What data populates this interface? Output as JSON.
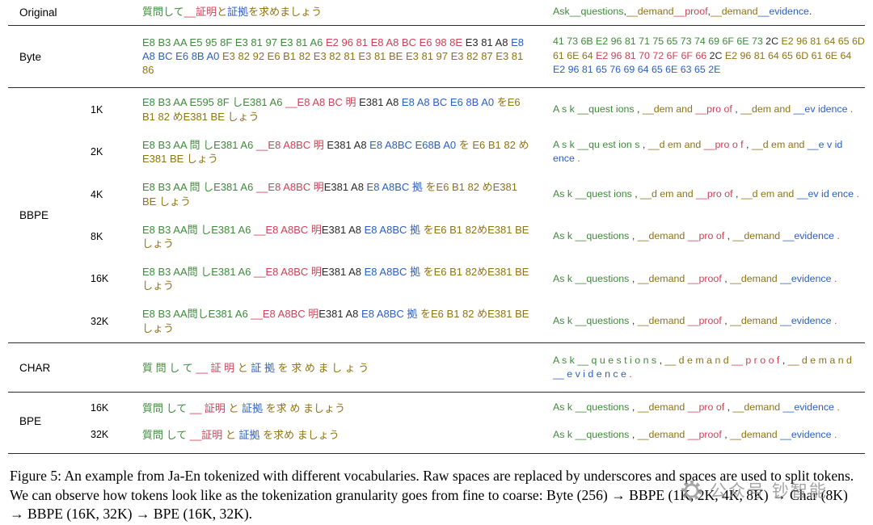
{
  "palette": {
    "green": "#3E8A3A",
    "red": "#CC4257",
    "olive": "#8F7314",
    "blue": "#2C5FC2",
    "black": "#2A2A2A"
  },
  "table": {
    "sections": [
      {
        "group": "Original",
        "rows": [
          {
            "size": "",
            "ja": [
              {
                "t": "質問して",
                "c": "green"
              },
              {
                "t": "__証明",
                "c": "red"
              },
              {
                "t": "と",
                "c": "olive"
              },
              {
                "t": "証拠",
                "c": "blue"
              },
              {
                "t": "を求めましょう",
                "c": "olive"
              }
            ],
            "en": [
              {
                "t": "Ask",
                "c": "green"
              },
              {
                "t": "__questions",
                "c": "green"
              },
              {
                "t": ",",
                "c": "black"
              },
              {
                "t": "__demand",
                "c": "olive"
              },
              {
                "t": "__proof",
                "c": "red"
              },
              {
                "t": ",",
                "c": "black"
              },
              {
                "t": "__demand",
                "c": "olive"
              },
              {
                "t": "__evidence",
                "c": "blue"
              },
              {
                "t": ".",
                "c": "black"
              }
            ]
          }
        ]
      },
      {
        "group": "Byte",
        "rows": [
          {
            "size": "",
            "ja": [
              {
                "t": "E8 B3 AA E5 95 8F E3 81 97 E3 81 A6 ",
                "c": "green"
              },
              {
                "t": "E2 96 81 E8 A8 BC E6 98 8E ",
                "c": "red"
              },
              {
                "t": "E3 81 A8 ",
                "c": "black"
              },
              {
                "t": "E8 A8 BC E6 8B A0 ",
                "c": "blue"
              },
              {
                "t": "E3 82 92 E6 B1 82 E3 82 81 E3 81 BE E3 81 97 E3 82 87 E3 81 86",
                "c": "olive"
              }
            ],
            "en": [
              {
                "t": "41 73 6B E2 96 81 71 75 65 73 74 69 6F 6E 73 ",
                "c": "green"
              },
              {
                "t": "2C ",
                "c": "black"
              },
              {
                "t": "E2 96 81 64 65 6D 61 6E 64 ",
                "c": "olive"
              },
              {
                "t": "E2 96 81 70 72 6F 6F 66 ",
                "c": "red"
              },
              {
                "t": "2C ",
                "c": "black"
              },
              {
                "t": "E2 96 81 64 65 6D 61 6E 64 ",
                "c": "olive"
              },
              {
                "t": "E2 96 81 65 76 69 64 65 6E 63 65 2E",
                "c": "blue"
              }
            ]
          }
        ]
      },
      {
        "group": "BBPE",
        "rows": [
          {
            "size": "1K",
            "ja": [
              {
                "t": "E8 B3 AA E595 8F しE381 A6 ",
                "c": "green"
              },
              {
                "t": "__E8 A8 BC 明 ",
                "c": "red"
              },
              {
                "t": "E381 A8 ",
                "c": "black"
              },
              {
                "t": "E8 A8 BC E6 8B A0 ",
                "c": "blue"
              },
              {
                "t": "をE6 B1 82 めE381 BE しょう",
                "c": "olive"
              }
            ],
            "en": [
              {
                "t": "A s k ",
                "c": "green"
              },
              {
                "t": "__quest ions ",
                "c": "green"
              },
              {
                "t": ", ",
                "c": "black"
              },
              {
                "t": "__dem and ",
                "c": "olive"
              },
              {
                "t": "__pro of ",
                "c": "red"
              },
              {
                "t": ", ",
                "c": "black"
              },
              {
                "t": "__dem and ",
                "c": "olive"
              },
              {
                "t": "__ev idence ",
                "c": "blue"
              },
              {
                "t": ".",
                "c": "red"
              }
            ]
          },
          {
            "size": "2K",
            "ja": [
              {
                "t": "E8 B3 AA 問 しE381 A6 ",
                "c": "green"
              },
              {
                "t": "__E8 A8BC 明 ",
                "c": "red"
              },
              {
                "t": "E381 A8 ",
                "c": "black"
              },
              {
                "t": "E8 A8BC E68B A0 ",
                "c": "blue"
              },
              {
                "t": "を E6 B1 82 めE381 BE しょう",
                "c": "olive"
              }
            ],
            "en": [
              {
                "t": "A s k ",
                "c": "green"
              },
              {
                "t": "__qu est ion s ",
                "c": "green"
              },
              {
                "t": ", ",
                "c": "black"
              },
              {
                "t": "__d em and ",
                "c": "olive"
              },
              {
                "t": "__pro o f ",
                "c": "red"
              },
              {
                "t": ", ",
                "c": "black"
              },
              {
                "t": "__d em and ",
                "c": "olive"
              },
              {
                "t": "__e v id ence ",
                "c": "blue"
              },
              {
                "t": ".",
                "c": "red"
              }
            ]
          },
          {
            "size": "4K",
            "ja": [
              {
                "t": "E8 B3 AA 問 しE381 A6 ",
                "c": "green"
              },
              {
                "t": "__E8 A8BC 明",
                "c": "red"
              },
              {
                "t": "E381 A8 ",
                "c": "black"
              },
              {
                "t": "E8 A8BC 拠 ",
                "c": "blue"
              },
              {
                "t": "をE6 B1 82 めE381 BE しょう",
                "c": "olive"
              }
            ],
            "en": [
              {
                "t": "As k ",
                "c": "green"
              },
              {
                "t": "__quest ions ",
                "c": "green"
              },
              {
                "t": ", ",
                "c": "black"
              },
              {
                "t": "__d em and ",
                "c": "olive"
              },
              {
                "t": "__pro of ",
                "c": "red"
              },
              {
                "t": ", ",
                "c": "black"
              },
              {
                "t": "__d em and ",
                "c": "olive"
              },
              {
                "t": "__ev id ence ",
                "c": "blue"
              },
              {
                "t": ".",
                "c": "red"
              }
            ]
          },
          {
            "size": "8K",
            "ja": [
              {
                "t": "E8 B3 AA問 しE381 A6 ",
                "c": "green"
              },
              {
                "t": "__E8 A8BC 明",
                "c": "red"
              },
              {
                "t": "E381 A8 ",
                "c": "black"
              },
              {
                "t": "E8 A8BC 拠 ",
                "c": "blue"
              },
              {
                "t": "をE6 B1 82めE381 BE しょう",
                "c": "olive"
              }
            ],
            "en": [
              {
                "t": "As k ",
                "c": "green"
              },
              {
                "t": "__questions ",
                "c": "green"
              },
              {
                "t": ", ",
                "c": "black"
              },
              {
                "t": "__demand ",
                "c": "olive"
              },
              {
                "t": "__pro of ",
                "c": "red"
              },
              {
                "t": ", ",
                "c": "black"
              },
              {
                "t": "__demand ",
                "c": "olive"
              },
              {
                "t": "__evidence ",
                "c": "blue"
              },
              {
                "t": ".",
                "c": "red"
              }
            ]
          },
          {
            "size": "16K",
            "ja": [
              {
                "t": "E8 B3 AA問 しE381 A6 ",
                "c": "green"
              },
              {
                "t": "__E8 A8BC 明",
                "c": "red"
              },
              {
                "t": "E381 A8 ",
                "c": "black"
              },
              {
                "t": "E8 A8BC 拠 ",
                "c": "blue"
              },
              {
                "t": "をE6 B1 82めE381 BE しょう",
                "c": "olive"
              }
            ],
            "en": [
              {
                "t": "As k ",
                "c": "green"
              },
              {
                "t": "__questions ",
                "c": "green"
              },
              {
                "t": ", ",
                "c": "black"
              },
              {
                "t": "__demand ",
                "c": "olive"
              },
              {
                "t": "__proof ",
                "c": "red"
              },
              {
                "t": ", ",
                "c": "black"
              },
              {
                "t": "__demand ",
                "c": "olive"
              },
              {
                "t": "__evidence ",
                "c": "blue"
              },
              {
                "t": ".",
                "c": "red"
              }
            ]
          },
          {
            "size": "32K",
            "ja": [
              {
                "t": "E8 B3 AA問しE381 A6 ",
                "c": "green"
              },
              {
                "t": "__E8 A8BC 明",
                "c": "red"
              },
              {
                "t": "E381 A8 ",
                "c": "black"
              },
              {
                "t": "E8 A8BC 拠 ",
                "c": "blue"
              },
              {
                "t": "をE6 B1 82 めE381 BE しょう",
                "c": "olive"
              }
            ],
            "en": [
              {
                "t": "As k ",
                "c": "green"
              },
              {
                "t": "__questions ",
                "c": "green"
              },
              {
                "t": ", ",
                "c": "black"
              },
              {
                "t": "__demand ",
                "c": "olive"
              },
              {
                "t": "__proof ",
                "c": "red"
              },
              {
                "t": ", ",
                "c": "black"
              },
              {
                "t": "__demand ",
                "c": "olive"
              },
              {
                "t": "__evidence ",
                "c": "blue"
              },
              {
                "t": ".",
                "c": "red"
              }
            ]
          }
        ]
      },
      {
        "group": "CHAR",
        "rows": [
          {
            "size": "",
            "ja": [
              {
                "t": "質 問 し て ",
                "c": "green"
              },
              {
                "t": "__ ",
                "c": "red"
              },
              {
                "t": "証 明 ",
                "c": "red"
              },
              {
                "t": "と ",
                "c": "olive"
              },
              {
                "t": "証 拠 ",
                "c": "blue"
              },
              {
                "t": "を 求 め ま し ょ う",
                "c": "olive"
              }
            ],
            "en": [
              {
                "t": "A s k ",
                "c": "green"
              },
              {
                "t": "__ q u e s t i o n s ",
                "c": "green"
              },
              {
                "t": ", ",
                "c": "black"
              },
              {
                "t": "__ d e m a n d ",
                "c": "olive"
              },
              {
                "t": "__ p r o o f ",
                "c": "red"
              },
              {
                "t": ", ",
                "c": "black"
              },
              {
                "t": "__ d e m a n d ",
                "c": "olive"
              },
              {
                "t": "__ ",
                "c": "blue"
              },
              {
                "t": "e v i d e n c e ",
                "c": "blue"
              },
              {
                "t": ".",
                "c": "red"
              }
            ]
          }
        ]
      },
      {
        "group": "BPE",
        "rows": [
          {
            "size": "16K",
            "ja": [
              {
                "t": "質問 して ",
                "c": "green"
              },
              {
                "t": "__ ",
                "c": "red"
              },
              {
                "t": "証明 ",
                "c": "red"
              },
              {
                "t": "と ",
                "c": "olive"
              },
              {
                "t": "証拠 ",
                "c": "blue"
              },
              {
                "t": "を求 め ましょう",
                "c": "olive"
              }
            ],
            "en": [
              {
                "t": "As k ",
                "c": "green"
              },
              {
                "t": "__questions ",
                "c": "green"
              },
              {
                "t": ", ",
                "c": "black"
              },
              {
                "t": "__demand ",
                "c": "olive"
              },
              {
                "t": "__pro of ",
                "c": "red"
              },
              {
                "t": ", ",
                "c": "black"
              },
              {
                "t": "__demand ",
                "c": "olive"
              },
              {
                "t": "__evidence ",
                "c": "blue"
              },
              {
                "t": ".",
                "c": "red"
              }
            ]
          },
          {
            "size": "32K",
            "ja": [
              {
                "t": "質問 して ",
                "c": "green"
              },
              {
                "t": "__証明 ",
                "c": "red"
              },
              {
                "t": "と ",
                "c": "olive"
              },
              {
                "t": "証拠 ",
                "c": "blue"
              },
              {
                "t": "を求め ましょう",
                "c": "olive"
              }
            ],
            "en": [
              {
                "t": "As k ",
                "c": "green"
              },
              {
                "t": "__questions ",
                "c": "green"
              },
              {
                "t": ", ",
                "c": "black"
              },
              {
                "t": "__demand ",
                "c": "olive"
              },
              {
                "t": "__proof ",
                "c": "red"
              },
              {
                "t": ", ",
                "c": "black"
              },
              {
                "t": "__demand ",
                "c": "olive"
              },
              {
                "t": "__evidence ",
                "c": "blue"
              },
              {
                "t": ".",
                "c": "red"
              }
            ]
          }
        ]
      }
    ]
  },
  "caption": "Figure 5: An example from Ja-En tokenized with different vocabularies. Raw spaces are replaced by underscores and spaces are used to split tokens. We can observe how tokens look like as the tokenization granularity goes from fine to coarse: Byte (256) → BBPE (1K, 2K, 4K, 8K) → Char (8K) → BBPE (16K, 32K) → BPE (16K, 32K).",
  "watermark": {
    "text": "公众号 钞智能"
  }
}
